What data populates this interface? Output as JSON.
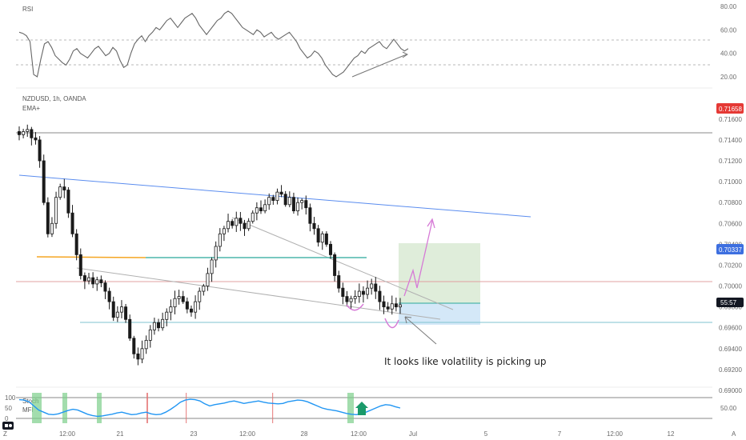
{
  "panels": {
    "rsi": {
      "title": "RSI"
    },
    "price": {
      "symbol_line": "NZDUSD, 1h, OANDA",
      "indicator": "EMA+"
    },
    "oscillator": {
      "stoch_label": "Stoch",
      "mfi_label": "MFI"
    }
  },
  "annotation": {
    "text": "It looks like volatility is picking up"
  },
  "price_badges": {
    "top": "0.71658",
    "mid": "0.70337",
    "countdown": "55:57"
  },
  "colors": {
    "candle": "#1a1a1a",
    "resistance_line": "#8a8a8a",
    "upper_trendline": "#5b8def",
    "pivot_line": "#e0a0a0",
    "support_line": "#7fc3cf",
    "ema_orange": "#f5a623",
    "ema_teal": "#4db6ac",
    "projection": "#d67ad6",
    "target_zone": "#d9ead3",
    "stop_zone": "#cfe6f7",
    "rsi_line": "#666666",
    "stoch_line": "#2196f3",
    "badge_red": "#e53935",
    "badge_blue": "#3d6fe0"
  },
  "icons": {
    "stoch_signal": "up-arrow-icon",
    "tradingview_logo": "tradingview-logo-icon",
    "settings": "z-scale-icon",
    "auto_scale": "auto-scale-icon"
  },
  "chart_data": [
    {
      "type": "line",
      "title": "RSI",
      "y_ticks": [
        "80.00",
        "60.00",
        "40.00",
        "20.00"
      ],
      "ylim": [
        20,
        80
      ],
      "series": [
        {
          "name": "RSI",
          "values": [
            58,
            57,
            55,
            50,
            22,
            20,
            35,
            48,
            50,
            45,
            38,
            35,
            32,
            30,
            35,
            42,
            44,
            40,
            38,
            36,
            40,
            44,
            46,
            42,
            38,
            40,
            45,
            42,
            34,
            28,
            30,
            40,
            48,
            52,
            55,
            50,
            55,
            58,
            62,
            60,
            64,
            68,
            70,
            66,
            62,
            66,
            70,
            72,
            74,
            70,
            64,
            60,
            56,
            60,
            64,
            68,
            70,
            74,
            76,
            74,
            70,
            66,
            62,
            60,
            58,
            56,
            60,
            58,
            54,
            56,
            58,
            54,
            52,
            54,
            56,
            58,
            54,
            50,
            44,
            40,
            36,
            38,
            42,
            40,
            36,
            30,
            26,
            22,
            20,
            22,
            24,
            28,
            32,
            36,
            38,
            42,
            40,
            44,
            46,
            48,
            50,
            46,
            44,
            48,
            52,
            48,
            44,
            42,
            44
          ]
        }
      ]
    },
    {
      "type": "candlestick",
      "title": "NZDUSD, 1h, OANDA",
      "y_ticks": [
        "0.71658",
        "0.71600",
        "0.71400",
        "0.71200",
        "0.71000",
        "0.70800",
        "0.70600",
        "0.70400",
        "0.70337",
        "0.70200",
        "0.70000",
        "0.69800",
        "0.69600",
        "0.69400",
        "0.69200",
        "0.69000"
      ],
      "ylim": [
        0.689,
        0.717
      ],
      "x_ticks": [
        "12:00",
        "21",
        "23",
        "12:00",
        "28",
        "12:00",
        "Jul",
        "5",
        "7",
        "12:00",
        "12"
      ],
      "closes": [
        0.7145,
        0.7148,
        0.715,
        0.7142,
        0.714,
        0.712,
        0.708,
        0.705,
        0.706,
        0.7085,
        0.7095,
        0.7092,
        0.707,
        0.705,
        0.703,
        0.701,
        0.7005,
        0.7008,
        0.7002,
        0.7006,
        0.7003,
        0.6995,
        0.6985,
        0.697,
        0.6975,
        0.698,
        0.6968,
        0.695,
        0.6935,
        0.693,
        0.694,
        0.6948,
        0.6958,
        0.6965,
        0.696,
        0.6968,
        0.6975,
        0.698,
        0.6988,
        0.699,
        0.6985,
        0.6978,
        0.6975,
        0.6985,
        0.6995,
        0.7,
        0.7012,
        0.7025,
        0.7038,
        0.705,
        0.7055,
        0.7062,
        0.7058,
        0.7065,
        0.706,
        0.7055,
        0.7062,
        0.707,
        0.7075,
        0.7072,
        0.7078,
        0.7085,
        0.7082,
        0.709,
        0.7088,
        0.7078,
        0.7085,
        0.7072,
        0.708,
        0.7082,
        0.7075,
        0.706,
        0.7055,
        0.7042,
        0.705,
        0.704,
        0.703,
        0.701,
        0.6998,
        0.699,
        0.6985,
        0.6988,
        0.699,
        0.6995,
        0.6992,
        0.6998,
        0.7002,
        0.6995,
        0.6985,
        0.698,
        0.6978,
        0.6983,
        0.698,
        0.6982
      ],
      "levels": {
        "resistance": 0.7145,
        "pivot": 0.7003,
        "support": 0.6966,
        "ema_flat": 0.7025
      },
      "trendlines": [
        {
          "name": "upper-trendline",
          "from": [
            0.0,
            0.71
          ],
          "to": [
            1.0,
            0.7063
          ]
        },
        {
          "name": "lower-trendline",
          "from": [
            0.13,
            0.6993
          ],
          "to": [
            0.86,
            0.6968
          ]
        },
        {
          "name": "inner-trendline",
          "from": [
            0.53,
            0.7063
          ],
          "to": [
            0.9,
            0.6985
          ]
        }
      ]
    },
    {
      "type": "line",
      "title": "Stoch MFI",
      "y_ticks": [
        "100",
        "50",
        "0"
      ],
      "right_tick": "50.00",
      "ylim": [
        0,
        100
      ],
      "series": [
        {
          "name": "MFI",
          "values": [
            90,
            88,
            80,
            60,
            40,
            30,
            20,
            18,
            22,
            30,
            38,
            44,
            40,
            30,
            20,
            14,
            10,
            12,
            16,
            20,
            26,
            30,
            24,
            18,
            20,
            26,
            30,
            22,
            18,
            20,
            30,
            44,
            60,
            78,
            88,
            92,
            90,
            84,
            70,
            60,
            66,
            70,
            74,
            80,
            84,
            78,
            72,
            76,
            80,
            84,
            78,
            74,
            72,
            70,
            72,
            80,
            84,
            88,
            86,
            80,
            70,
            60,
            50,
            44,
            40,
            36,
            30,
            24,
            20,
            18,
            22,
            30,
            40,
            50,
            60,
            66,
            64,
            56,
            50
          ]
        }
      ]
    }
  ]
}
